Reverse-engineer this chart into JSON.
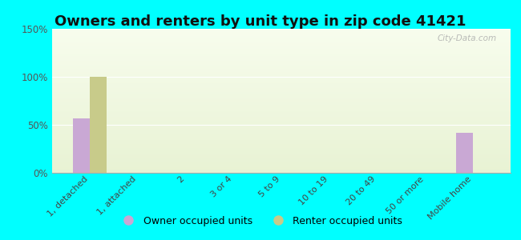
{
  "title": "Owners and renters by unit type in zip code 41421",
  "categories": [
    "1, detached",
    "1, attached",
    "2",
    "3 or 4",
    "5 to 9",
    "10 to 19",
    "20 to 49",
    "50 or more",
    "Mobile home"
  ],
  "owner_values": [
    57,
    0,
    0,
    0,
    0,
    0,
    0,
    0,
    42
  ],
  "renter_values": [
    100,
    0,
    0,
    0,
    0,
    0,
    0,
    0,
    0
  ],
  "owner_color": "#c9a8d4",
  "renter_color": "#c8cb8a",
  "background_color": "#00ffff",
  "ylim": [
    0,
    150
  ],
  "yticks": [
    0,
    50,
    100,
    150
  ],
  "ytick_labels": [
    "0%",
    "50%",
    "100%",
    "150%"
  ],
  "bar_width": 0.35,
  "title_fontsize": 13,
  "watermark": "City-Data.com"
}
